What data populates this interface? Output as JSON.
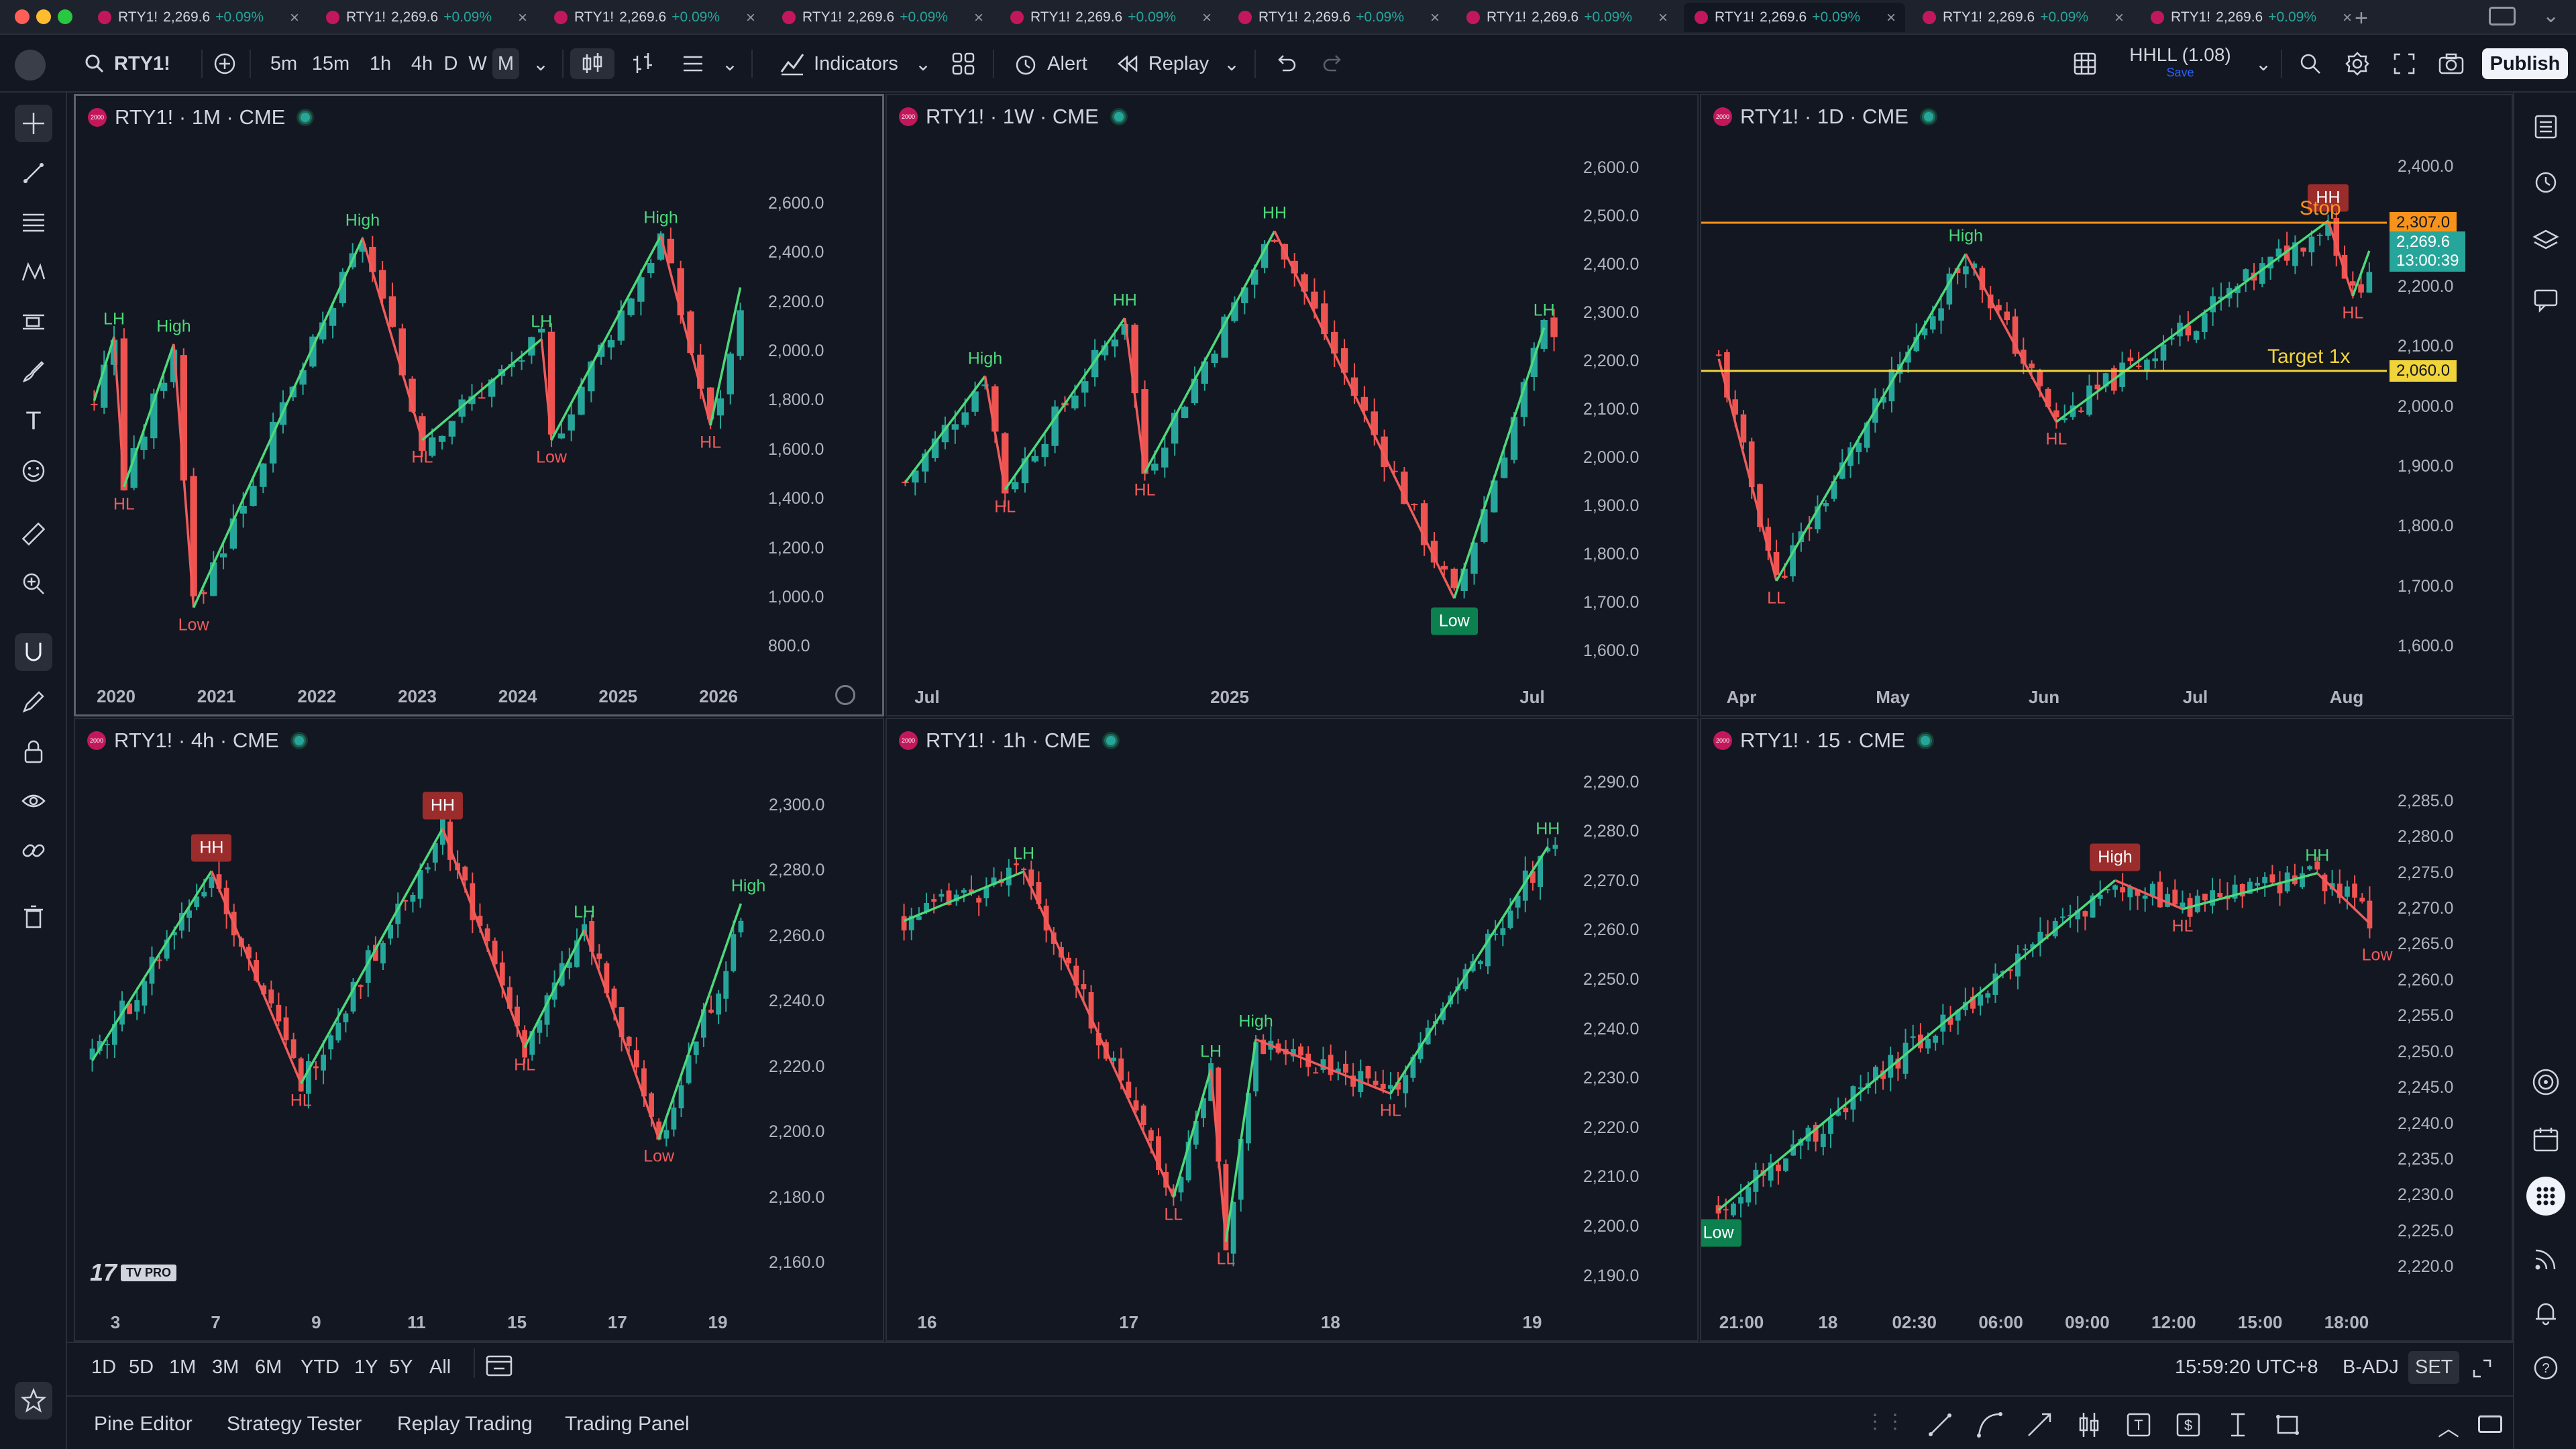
{
  "tabs": [
    {
      "symbol": "RTY1!",
      "price": "2,269.6",
      "change": "+0.09%",
      "active": false
    },
    {
      "symbol": "RTY1!",
      "price": "2,269.6",
      "change": "+0.09%",
      "active": false
    },
    {
      "symbol": "RTY1!",
      "price": "2,269.6",
      "change": "+0.09%",
      "active": false
    },
    {
      "symbol": "RTY1!",
      "price": "2,269.6",
      "change": "+0.09%",
      "active": false
    },
    {
      "symbol": "RTY1!",
      "price": "2,269.6",
      "change": "+0.09%",
      "active": false
    },
    {
      "symbol": "RTY1!",
      "price": "2,269.6",
      "change": "+0.09%",
      "active": false
    },
    {
      "symbol": "RTY1!",
      "price": "2,269.6",
      "change": "+0.09%",
      "active": false
    },
    {
      "symbol": "RTY1!",
      "price": "2,269.6",
      "change": "+0.09%",
      "active": true
    },
    {
      "symbol": "RTY1!",
      "price": "2,269.6",
      "change": "+0.09%",
      "active": false
    },
    {
      "symbol": "RTY1!",
      "price": "2,269.6",
      "change": "+0.09%",
      "active": false
    }
  ],
  "toolbar": {
    "symbol": "RTY1!",
    "intervals": [
      "5m",
      "15m",
      "1h",
      "4h",
      "D",
      "W",
      "M"
    ],
    "selected_interval": "M",
    "indicators": "Indicators",
    "alert": "Alert",
    "replay": "Replay",
    "layout_name": "HHLL (1.08)",
    "layout_save": "Save",
    "publish": "Publish"
  },
  "colors": {
    "up": "#26a69a",
    "down": "#ef5350",
    "swing_up": "#4cd97b",
    "swing_down": "#f05b5b",
    "stop": "#f7931a",
    "target": "#f0d43a",
    "background": "#131722"
  },
  "panes": [
    {
      "id": "p1",
      "title": "RTY1! · 1M · CME",
      "yticks": [
        "2,600.0",
        "2,400.0",
        "2,200.0",
        "2,000.0",
        "1,800.0",
        "1,600.0",
        "1,400.0",
        "1,200.0",
        "1,000.0",
        "800.0"
      ],
      "ytick_values": [
        2600,
        2400,
        2200,
        2000,
        1800,
        1600,
        1400,
        1200,
        1000,
        800
      ],
      "ylim": [
        700,
        2820
      ],
      "xticks": [
        "2020",
        "2021",
        "2022",
        "2023",
        "2024",
        "2025",
        "2026"
      ],
      "labels": [
        {
          "text": "LH",
          "color": "g",
          "i": 2,
          "p": 2060,
          "pos": "above"
        },
        {
          "text": "High",
          "color": "g",
          "i": 8,
          "p": 2030,
          "pos": "above"
        },
        {
          "text": "HL",
          "color": "r",
          "i": 3,
          "p": 1450,
          "pos": "below"
        },
        {
          "text": "Low",
          "color": "r",
          "i": 10,
          "p": 960,
          "pos": "below"
        },
        {
          "text": "High",
          "color": "g",
          "i": 27,
          "p": 2460,
          "pos": "above"
        },
        {
          "text": "HL",
          "color": "r",
          "i": 33,
          "p": 1640,
          "pos": "below"
        },
        {
          "text": "LH",
          "color": "g",
          "i": 45,
          "p": 2050,
          "pos": "above"
        },
        {
          "text": "Low",
          "color": "r",
          "i": 46,
          "p": 1640,
          "pos": "below"
        },
        {
          "text": "High",
          "color": "g",
          "i": 57,
          "p": 2470,
          "pos": "above"
        },
        {
          "text": "HL",
          "color": "r",
          "i": 62,
          "p": 1700,
          "pos": "below"
        }
      ],
      "zigzag": [
        [
          0,
          1800
        ],
        [
          2,
          2060
        ],
        [
          3,
          1450
        ],
        [
          8,
          2030
        ],
        [
          10,
          960
        ],
        [
          27,
          2460
        ],
        [
          33,
          1640
        ],
        [
          45,
          2050
        ],
        [
          46,
          1640
        ],
        [
          57,
          2470
        ],
        [
          62,
          1700
        ],
        [
          66,
          2260
        ]
      ],
      "ncandles": 66,
      "seed": 3
    },
    {
      "id": "p2",
      "title": "RTY1! · 1W · CME",
      "yticks": [
        "2,600.0",
        "2,500.0",
        "2,400.0",
        "2,300.0",
        "2,200.0",
        "2,100.0",
        "2,000.0",
        "1,900.0",
        "1,800.0",
        "1,700.0",
        "1,600.0"
      ],
      "ytick_values": [
        2600,
        2500,
        2400,
        2300,
        2200,
        2100,
        2000,
        1900,
        1800,
        1700,
        1600
      ],
      "ylim": [
        1560,
        2640
      ],
      "xticks": [
        "Jul",
        "2025",
        "Jul"
      ],
      "labels": [
        {
          "text": "High",
          "color": "g",
          "i": 8,
          "p": 2170,
          "pos": "above"
        },
        {
          "text": "HL",
          "color": "r",
          "i": 10,
          "p": 1935,
          "pos": "below"
        },
        {
          "text": "HH",
          "color": "g",
          "i": 22,
          "p": 2290,
          "pos": "above"
        },
        {
          "text": "HL",
          "color": "r",
          "i": 24,
          "p": 1970,
          "pos": "below"
        },
        {
          "text": "HH",
          "color": "g",
          "i": 37,
          "p": 2470,
          "pos": "above"
        },
        {
          "text": "LH",
          "color": "g",
          "i": 64,
          "p": 2270,
          "pos": "above"
        }
      ],
      "bubbles": [
        {
          "text": "Low",
          "color": "g",
          "i": 55,
          "p": 1710,
          "pos": "below"
        }
      ],
      "zigzag": [
        [
          0,
          1950
        ],
        [
          8,
          2170
        ],
        [
          10,
          1935
        ],
        [
          22,
          2290
        ],
        [
          24,
          1970
        ],
        [
          37,
          2470
        ],
        [
          55,
          1710
        ],
        [
          64,
          2270
        ]
      ],
      "ncandles": 66,
      "seed": 7
    },
    {
      "id": "p3",
      "title": "RTY1! · 1D · CME",
      "yticks": [
        "2,400.0",
        "2,300.0",
        "2,200.0",
        "2,100.0",
        "2,000.0",
        "1,900.0",
        "1,800.0",
        "1,700.0",
        "1,600.0"
      ],
      "ytick_values": [
        2400,
        2300,
        2200,
        2100,
        2000,
        1900,
        1800,
        1700,
        1600
      ],
      "ylim": [
        1560,
        2430
      ],
      "xticks": [
        "Apr",
        "May",
        "Jun",
        "Jul",
        "Aug"
      ],
      "labels": [
        {
          "text": "LL",
          "color": "r",
          "i": 7,
          "p": 1710,
          "pos": "below"
        },
        {
          "text": "High",
          "color": "g",
          "i": 30,
          "p": 2255,
          "pos": "above"
        },
        {
          "text": "HL",
          "color": "r",
          "i": 41,
          "p": 1975,
          "pos": "below"
        },
        {
          "text": "HL",
          "color": "r",
          "i": 77,
          "p": 2185,
          "pos": "below"
        }
      ],
      "bubbles": [
        {
          "text": "HH",
          "color": "r",
          "i": 74,
          "p": 2310,
          "pos": "above"
        }
      ],
      "zigzag": [
        [
          0,
          2080
        ],
        [
          7,
          1710
        ],
        [
          30,
          2255
        ],
        [
          41,
          1975
        ],
        [
          74,
          2310
        ],
        [
          77,
          2185
        ],
        [
          80,
          2260
        ]
      ],
      "stop": {
        "label": "Stop",
        "value": "2,307.0",
        "v": 2307
      },
      "target": {
        "label": "Target 1x",
        "value": "2,060.0",
        "v": 2060
      },
      "last": {
        "price": "2,269.6",
        "countdown": "13:00:39",
        "v": 2269.6
      },
      "ncandles": 80,
      "seed": 11
    },
    {
      "id": "p4",
      "title": "RTY1! · 4h · CME",
      "yticks": [
        "2,300.0",
        "2,280.0",
        "2,260.0",
        "2,240.0",
        "2,220.0",
        "2,200.0",
        "2,180.0",
        "2,160.0"
      ],
      "ytick_values": [
        2300,
        2280,
        2260,
        2240,
        2220,
        2200,
        2180,
        2160
      ],
      "ylim": [
        2150,
        2310
      ],
      "xticks": [
        "3",
        "7",
        "9",
        "11",
        "15",
        "17",
        "19"
      ],
      "labels": [
        {
          "text": "HL",
          "color": "r",
          "i": 28,
          "p": 2215,
          "pos": "below"
        },
        {
          "text": "HL",
          "color": "r",
          "i": 58,
          "p": 2226,
          "pos": "below"
        },
        {
          "text": "LH",
          "color": "g",
          "i": 66,
          "p": 2262,
          "pos": "above"
        },
        {
          "text": "Low",
          "color": "r",
          "i": 76,
          "p": 2198,
          "pos": "below"
        },
        {
          "text": "High",
          "color": "g",
          "i": 88,
          "p": 2270,
          "pos": "above"
        }
      ],
      "bubbles": [
        {
          "text": "HH",
          "color": "r",
          "i": 16,
          "p": 2280,
          "pos": "above"
        },
        {
          "text": "HH",
          "color": "r",
          "i": 47,
          "p": 2293,
          "pos": "above"
        }
      ],
      "zigzag": [
        [
          0,
          2222
        ],
        [
          16,
          2280
        ],
        [
          28,
          2215
        ],
        [
          47,
          2293
        ],
        [
          58,
          2226
        ],
        [
          66,
          2262
        ],
        [
          76,
          2198
        ],
        [
          88,
          2270
        ]
      ],
      "ncandles": 88,
      "seed": 19
    },
    {
      "id": "p5",
      "title": "RTY1! · 1h · CME",
      "yticks": [
        "2,290.0",
        "2,280.0",
        "2,270.0",
        "2,260.0",
        "2,250.0",
        "2,240.0",
        "2,230.0",
        "2,220.0",
        "2,210.0",
        "2,200.0",
        "2,190.0"
      ],
      "ytick_values": [
        2290,
        2280,
        2270,
        2260,
        2250,
        2240,
        2230,
        2220,
        2210,
        2200,
        2190
      ],
      "ylim": [
        2186,
        2292
      ],
      "xticks": [
        "16",
        "17",
        "18",
        "19"
      ],
      "labels": [
        {
          "text": "LH",
          "color": "g",
          "i": 16,
          "p": 2272,
          "pos": "above"
        },
        {
          "text": "LL",
          "color": "r",
          "i": 36,
          "p": 2206,
          "pos": "below"
        },
        {
          "text": "LH",
          "color": "g",
          "i": 41,
          "p": 2232,
          "pos": "above"
        },
        {
          "text": "LL",
          "color": "r",
          "i": 43,
          "p": 2197,
          "pos": "below"
        },
        {
          "text": "High",
          "color": "g",
          "i": 47,
          "p": 2238,
          "pos": "above"
        },
        {
          "text": "HL",
          "color": "r",
          "i": 65,
          "p": 2227,
          "pos": "below"
        },
        {
          "text": "HH",
          "color": "g",
          "i": 86,
          "p": 2277,
          "pos": "above"
        }
      ],
      "zigzag": [
        [
          0,
          2262
        ],
        [
          16,
          2272
        ],
        [
          36,
          2206
        ],
        [
          41,
          2232
        ],
        [
          43,
          2197
        ],
        [
          47,
          2238
        ],
        [
          65,
          2227
        ],
        [
          86,
          2277
        ]
      ],
      "ncandles": 88,
      "seed": 23
    },
    {
      "id": "p6",
      "title": "RTY1! · 15 · CME",
      "yticks": [
        "2,285.0",
        "2,280.0",
        "2,275.0",
        "2,270.0",
        "2,265.0",
        "2,260.0",
        "2,255.0",
        "2,250.0",
        "2,245.0",
        "2,240.0",
        "2,235.0",
        "2,230.0",
        "2,225.0",
        "2,220.0"
      ],
      "ytick_values": [
        2285,
        2280,
        2275,
        2270,
        2265,
        2260,
        2255,
        2250,
        2245,
        2240,
        2235,
        2230,
        2225,
        2220
      ],
      "ylim": [
        2216,
        2289
      ],
      "xticks": [
        "21:00",
        "18",
        "02:30",
        "06:00",
        "09:00",
        "12:00",
        "15:00",
        "18:00"
      ],
      "labels": [
        {
          "text": "HL",
          "color": "r",
          "i": 62,
          "p": 2270,
          "pos": "below"
        },
        {
          "text": "HH",
          "color": "g",
          "i": 80,
          "p": 2275,
          "pos": "above"
        },
        {
          "text": "Low",
          "color": "r",
          "i": 88,
          "p": 2266,
          "pos": "below"
        }
      ],
      "bubbles": [
        {
          "text": "High",
          "color": "r",
          "i": 53,
          "p": 2274,
          "pos": "above"
        },
        {
          "text": "Low",
          "color": "g",
          "i": 0,
          "p": 2228,
          "pos": "below"
        }
      ],
      "zigzag": [
        [
          0,
          2228
        ],
        [
          53,
          2274
        ],
        [
          62,
          2270
        ],
        [
          80,
          2275
        ],
        [
          88,
          2268
        ]
      ],
      "ncandles": 88,
      "seed": 29
    }
  ],
  "range_buttons": [
    "1D",
    "5D",
    "1M",
    "3M",
    "6M",
    "YTD",
    "1Y",
    "5Y",
    "All"
  ],
  "status": {
    "clock": "15:59:20 UTC+8",
    "adj": "B-ADJ",
    "session": "SET"
  },
  "bottom_tabs": [
    "Pine Editor",
    "Strategy Tester",
    "Replay Trading",
    "Trading Panel"
  ],
  "watermark": "TV PRO"
}
